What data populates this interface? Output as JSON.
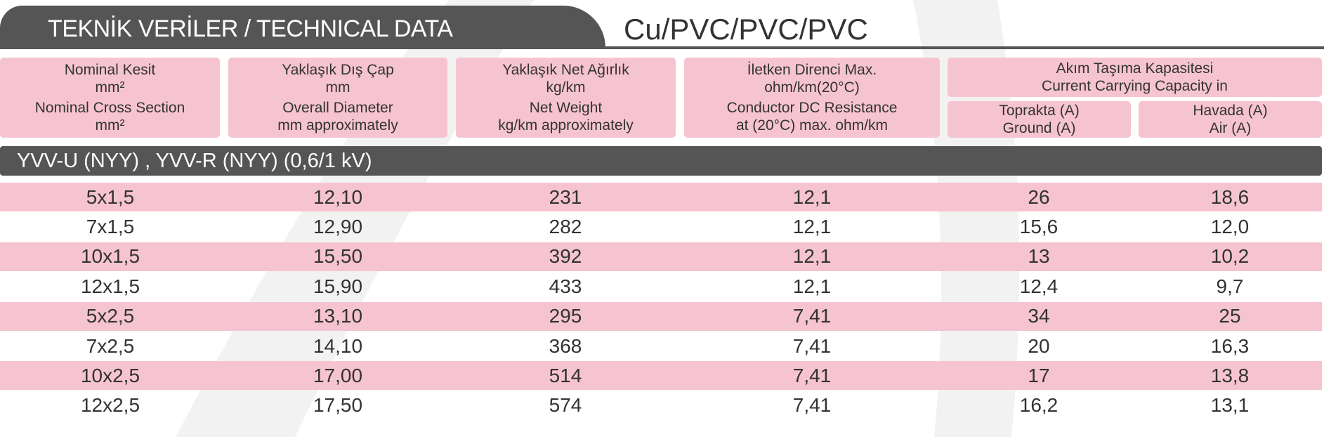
{
  "header": {
    "title": "TEKNİK  VERİLER /  TECHNICAL DATA",
    "subtitle": "Cu/PVC/PVC/PVC"
  },
  "table": {
    "columns": [
      [
        "Nominal Kesit",
        "mm²",
        "Nominal Cross Section",
        "mm²"
      ],
      [
        "Yaklaşık Dış Çap",
        "mm",
        "Overall Diameter",
        "mm approximately"
      ],
      [
        "Yaklaşık Net Ağırlık",
        "kg/km",
        "Net Weight",
        "kg/km approximately"
      ],
      [
        "İletken Direnci Max.",
        "ohm/km(20°C)",
        "Conductor DC Resistance",
        "at (20°C) max. ohm/km"
      ]
    ],
    "group": {
      "label": [
        "Akım Taşıma Kapasitesi",
        "Current Carrying Capacity in"
      ],
      "subcolumns": [
        [
          "Toprakta (A)",
          "Ground (A)"
        ],
        [
          "Havada (A)",
          "Air (A)"
        ]
      ]
    },
    "section": "YVV-U (NYY) , YVV-R (NYY) (0,6/1 kV)",
    "rows": [
      [
        "5x1,5",
        "12,10",
        "231",
        "12,1",
        "26",
        "18,6"
      ],
      [
        "7x1,5",
        "12,90",
        "282",
        "12,1",
        "15,6",
        "12,0"
      ],
      [
        "10x1,5",
        "15,50",
        "392",
        "12,1",
        "13",
        "10,2"
      ],
      [
        "12x1,5",
        "15,90",
        "433",
        "12,1",
        "12,4",
        "9,7"
      ],
      [
        "5x2,5",
        "13,10",
        "295",
        "7,41",
        "34",
        "25"
      ],
      [
        "7x2,5",
        "14,10",
        "368",
        "7,41",
        "20",
        "16,3"
      ],
      [
        "10x2,5",
        "17,00",
        "514",
        "7,41",
        "17",
        "13,8"
      ],
      [
        "12x2,5",
        "17,50",
        "574",
        "7,41",
        "16,2",
        "13,1"
      ]
    ]
  }
}
